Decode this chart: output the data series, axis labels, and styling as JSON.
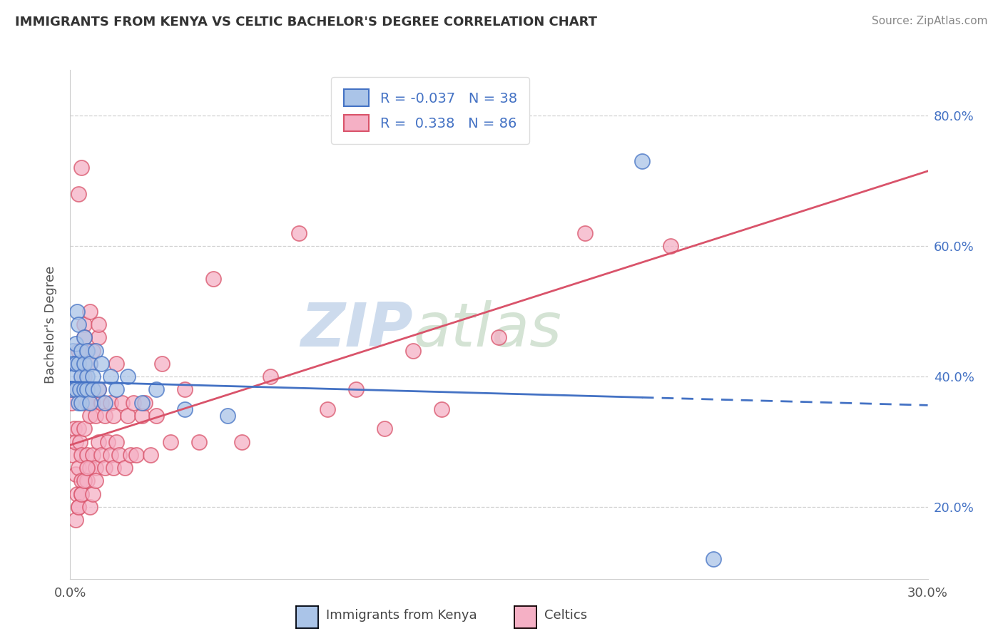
{
  "title": "IMMIGRANTS FROM KENYA VS CELTIC BACHELOR'S DEGREE CORRELATION CHART",
  "source": "Source: ZipAtlas.com",
  "ylabel": "Bachelor's Degree",
  "r_kenya": -0.037,
  "n_kenya": 38,
  "r_celtic": 0.338,
  "n_celtic": 86,
  "color_kenya_fill": "#aac4e8",
  "color_kenya_edge": "#4472c4",
  "color_celtic_fill": "#f5b0c5",
  "color_celtic_edge": "#d9536a",
  "line_color_kenya": "#4472c4",
  "line_color_celtic": "#d9536a",
  "text_color_blue": "#4472c4",
  "text_color_dark": "#333333",
  "text_color_gray": "#888888",
  "background_color": "#ffffff",
  "xlim": [
    0.0,
    0.3
  ],
  "ylim": [
    0.09,
    0.87
  ],
  "right_yticks": [
    0.2,
    0.4,
    0.6,
    0.8
  ],
  "right_ytick_labels": [
    "20.0%",
    "40.0%",
    "60.0%",
    "80.0%"
  ],
  "watermark_zip": "ZIP",
  "watermark_atlas": "atlas",
  "kenya_scatter_x": [
    0.0005,
    0.001,
    0.001,
    0.0015,
    0.002,
    0.002,
    0.002,
    0.0025,
    0.003,
    0.003,
    0.003,
    0.0035,
    0.004,
    0.004,
    0.004,
    0.005,
    0.005,
    0.005,
    0.006,
    0.006,
    0.006,
    0.007,
    0.007,
    0.008,
    0.008,
    0.009,
    0.01,
    0.011,
    0.012,
    0.014,
    0.016,
    0.02,
    0.025,
    0.03,
    0.04,
    0.055,
    0.2,
    0.225
  ],
  "kenya_scatter_y": [
    0.38,
    0.44,
    0.42,
    0.4,
    0.45,
    0.38,
    0.42,
    0.5,
    0.36,
    0.42,
    0.48,
    0.38,
    0.4,
    0.44,
    0.36,
    0.42,
    0.38,
    0.46,
    0.4,
    0.44,
    0.38,
    0.42,
    0.36,
    0.4,
    0.38,
    0.44,
    0.38,
    0.42,
    0.36,
    0.4,
    0.38,
    0.4,
    0.36,
    0.38,
    0.35,
    0.34,
    0.73,
    0.12
  ],
  "celtic_scatter_x": [
    0.0005,
    0.001,
    0.001,
    0.0015,
    0.002,
    0.002,
    0.002,
    0.0025,
    0.003,
    0.003,
    0.003,
    0.0035,
    0.004,
    0.004,
    0.004,
    0.005,
    0.005,
    0.005,
    0.006,
    0.006,
    0.006,
    0.007,
    0.007,
    0.007,
    0.008,
    0.008,
    0.008,
    0.009,
    0.009,
    0.01,
    0.01,
    0.01,
    0.011,
    0.011,
    0.012,
    0.012,
    0.013,
    0.014,
    0.014,
    0.015,
    0.015,
    0.016,
    0.016,
    0.017,
    0.018,
    0.019,
    0.02,
    0.021,
    0.022,
    0.023,
    0.025,
    0.026,
    0.028,
    0.03,
    0.032,
    0.035,
    0.04,
    0.045,
    0.05,
    0.06,
    0.07,
    0.08,
    0.09,
    0.1,
    0.11,
    0.12,
    0.13,
    0.15,
    0.01,
    0.007,
    0.003,
    0.004,
    0.005,
    0.006,
    0.002,
    0.003,
    0.004,
    0.005,
    0.006,
    0.007,
    0.008,
    0.009,
    0.003,
    0.004,
    0.18,
    0.21
  ],
  "celtic_scatter_y": [
    0.36,
    0.28,
    0.38,
    0.32,
    0.25,
    0.42,
    0.3,
    0.22,
    0.32,
    0.26,
    0.44,
    0.3,
    0.28,
    0.38,
    0.24,
    0.32,
    0.4,
    0.48,
    0.28,
    0.36,
    0.44,
    0.26,
    0.34,
    0.42,
    0.28,
    0.36,
    0.44,
    0.26,
    0.34,
    0.3,
    0.38,
    0.46,
    0.28,
    0.36,
    0.26,
    0.34,
    0.3,
    0.28,
    0.36,
    0.26,
    0.34,
    0.3,
    0.42,
    0.28,
    0.36,
    0.26,
    0.34,
    0.28,
    0.36,
    0.28,
    0.34,
    0.36,
    0.28,
    0.34,
    0.42,
    0.3,
    0.38,
    0.3,
    0.55,
    0.3,
    0.4,
    0.62,
    0.35,
    0.38,
    0.32,
    0.44,
    0.35,
    0.46,
    0.48,
    0.5,
    0.2,
    0.22,
    0.46,
    0.24,
    0.18,
    0.2,
    0.22,
    0.24,
    0.26,
    0.2,
    0.22,
    0.24,
    0.68,
    0.72,
    0.62,
    0.6
  ]
}
